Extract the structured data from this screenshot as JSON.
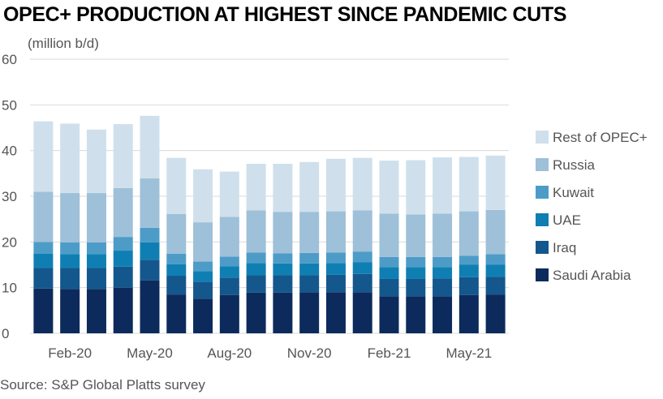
{
  "title": "OPEC+ PRODUCTION AT HIGHEST SINCE PANDEMIC CUTS",
  "source": "Source: S&P Global Platts survey",
  "chart_data": {
    "type": "bar",
    "stacked": true,
    "title": "OPEC+ PRODUCTION AT HIGHEST SINCE PANDEMIC CUTS",
    "ylabel": "(million b/d)",
    "xlabel": "",
    "ylim": [
      0,
      60
    ],
    "yticks": [
      0,
      10,
      20,
      30,
      40,
      50,
      60
    ],
    "grid": true,
    "legend_position": "right",
    "categories": [
      "Jan-20",
      "Feb-20",
      "Mar-20",
      "Apr-20",
      "May-20",
      "Jun-20",
      "Jul-20",
      "Aug-20",
      "Sep-20",
      "Oct-20",
      "Nov-20",
      "Dec-20",
      "Jan-21",
      "Feb-21",
      "Mar-21",
      "Apr-21",
      "May-21",
      "Jun-21"
    ],
    "xtick_labels": [
      {
        "index": 1,
        "label": "Feb-20"
      },
      {
        "index": 4,
        "label": "May-20"
      },
      {
        "index": 7,
        "label": "Aug-20"
      },
      {
        "index": 10,
        "label": "Nov-20"
      },
      {
        "index": 13,
        "label": "Feb-21"
      },
      {
        "index": 16,
        "label": "May-21"
      }
    ],
    "series": [
      {
        "name": "Saudi Arabia",
        "color": "#0c2b5c",
        "values": [
          9.8,
          9.7,
          9.7,
          10.0,
          11.6,
          8.5,
          7.6,
          8.4,
          8.9,
          8.9,
          9.0,
          9.0,
          9.0,
          8.1,
          8.1,
          8.1,
          8.4,
          8.5
        ]
      },
      {
        "name": "Iraq",
        "color": "#14578c",
        "values": [
          4.5,
          4.6,
          4.6,
          4.6,
          4.5,
          4.1,
          3.7,
          3.8,
          3.8,
          3.8,
          3.7,
          3.8,
          4.0,
          3.8,
          3.8,
          3.9,
          3.9,
          3.9
        ]
      },
      {
        "name": "UAE",
        "color": "#0f7fb3",
        "values": [
          3.1,
          3.0,
          3.0,
          3.5,
          3.8,
          2.5,
          2.3,
          2.5,
          2.7,
          2.6,
          2.6,
          2.6,
          2.6,
          2.6,
          2.6,
          2.5,
          2.7,
          2.6
        ]
      },
      {
        "name": "Kuwait",
        "color": "#4d9cc8",
        "values": [
          2.6,
          2.6,
          2.6,
          3.0,
          3.2,
          2.3,
          2.1,
          2.1,
          2.3,
          2.2,
          2.3,
          2.3,
          2.3,
          2.2,
          2.2,
          2.2,
          2.0,
          2.3
        ]
      },
      {
        "name": "Russia",
        "color": "#9ec0d9",
        "values": [
          11.0,
          10.8,
          10.8,
          10.7,
          10.8,
          8.7,
          8.6,
          8.7,
          9.2,
          9.1,
          9.0,
          9.0,
          9.0,
          9.5,
          9.3,
          9.5,
          9.7,
          9.7
        ]
      },
      {
        "name": "Rest of OPEC+",
        "color": "#cfe0ec",
        "values": [
          15.4,
          15.2,
          13.9,
          14.0,
          13.7,
          12.3,
          11.6,
          9.9,
          10.2,
          10.5,
          10.9,
          11.5,
          11.5,
          11.6,
          11.9,
          12.3,
          11.9,
          11.9
        ]
      }
    ],
    "legend_order": [
      "Rest of OPEC+",
      "Russia",
      "Kuwait",
      "UAE",
      "Iraq",
      "Saudi Arabia"
    ]
  }
}
